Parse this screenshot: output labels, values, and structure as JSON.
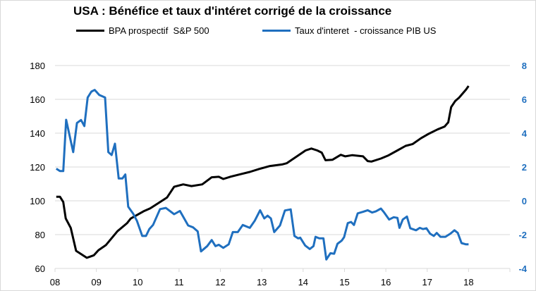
{
  "chart_data": {
    "type": "line",
    "title": "USA : Bénéfice et taux d'intéret corrigé de la croissance",
    "xlim": [
      2008,
      2019
    ],
    "x_tick_labels": [
      "08",
      "09",
      "10",
      "11",
      "12",
      "13",
      "14",
      "15",
      "16",
      "17",
      "18"
    ],
    "x_tick_values": [
      2008,
      2009,
      2010,
      2011,
      2012,
      2013,
      2014,
      2015,
      2016,
      2017,
      2018
    ],
    "y_left": {
      "lim": [
        60,
        180
      ],
      "ticks": [
        60,
        80,
        100,
        120,
        140,
        160,
        180
      ]
    },
    "y_right": {
      "lim": [
        -4,
        8
      ],
      "ticks": [
        -4,
        -2,
        0,
        2,
        4,
        6,
        8
      ],
      "color": "#1f6fbf"
    },
    "grid": "horizontal",
    "legend": "top",
    "series": [
      {
        "name": "BPA prospectif  S&P 500",
        "axis": "left",
        "color": "#000000",
        "points": [
          [
            2008.03,
            102.4
          ],
          [
            2008.12,
            102.4
          ],
          [
            2008.2,
            99.3
          ],
          [
            2008.26,
            89.6
          ],
          [
            2008.38,
            84
          ],
          [
            2008.51,
            70.4
          ],
          [
            2008.77,
            66.3
          ],
          [
            2008.94,
            67.8
          ],
          [
            2009.05,
            70.8
          ],
          [
            2009.23,
            73.8
          ],
          [
            2009.51,
            82
          ],
          [
            2009.74,
            86.7
          ],
          [
            2009.83,
            89.5
          ],
          [
            2010.14,
            93.8
          ],
          [
            2010.3,
            95.5
          ],
          [
            2010.54,
            99.3
          ],
          [
            2010.71,
            102
          ],
          [
            2010.88,
            108.3
          ],
          [
            2011.1,
            109.7
          ],
          [
            2011.3,
            108.7
          ],
          [
            2011.56,
            109.7
          ],
          [
            2011.79,
            113.9
          ],
          [
            2011.96,
            114.2
          ],
          [
            2012.07,
            112.9
          ],
          [
            2012.25,
            114.3
          ],
          [
            2012.48,
            115.7
          ],
          [
            2012.71,
            117.1
          ],
          [
            2012.93,
            118.8
          ],
          [
            2013.2,
            120.6
          ],
          [
            2013.49,
            121.5
          ],
          [
            2013.6,
            122.2
          ],
          [
            2013.89,
            127
          ],
          [
            2014.06,
            129.8
          ],
          [
            2014.2,
            130.9
          ],
          [
            2014.34,
            129.8
          ],
          [
            2014.45,
            128.5
          ],
          [
            2014.54,
            124
          ],
          [
            2014.71,
            124.3
          ],
          [
            2014.91,
            127.2
          ],
          [
            2015.02,
            126.3
          ],
          [
            2015.19,
            127
          ],
          [
            2015.45,
            126.3
          ],
          [
            2015.56,
            123.5
          ],
          [
            2015.65,
            123.2
          ],
          [
            2015.88,
            125
          ],
          [
            2016.05,
            126.7
          ],
          [
            2016.28,
            129.8
          ],
          [
            2016.48,
            132.5
          ],
          [
            2016.65,
            133.6
          ],
          [
            2016.85,
            137
          ],
          [
            2017.02,
            139.4
          ],
          [
            2017.25,
            142.2
          ],
          [
            2017.42,
            143.9
          ],
          [
            2017.51,
            146.4
          ],
          [
            2017.58,
            155.4
          ],
          [
            2017.68,
            159.1
          ],
          [
            2017.77,
            161
          ],
          [
            2017.94,
            165.8
          ],
          [
            2018.0,
            167.9
          ]
        ]
      },
      {
        "name": "Taux d'interet  - croissance PIB US",
        "axis": "right",
        "color": "#1f6fbf",
        "points": [
          [
            2008.03,
            1.9
          ],
          [
            2008.12,
            1.76
          ],
          [
            2008.2,
            1.76
          ],
          [
            2008.27,
            4.79
          ],
          [
            2008.44,
            2.88
          ],
          [
            2008.53,
            4.6
          ],
          [
            2008.63,
            4.78
          ],
          [
            2008.71,
            4.42
          ],
          [
            2008.79,
            6.11
          ],
          [
            2008.88,
            6.46
          ],
          [
            2008.96,
            6.56
          ],
          [
            2009.07,
            6.26
          ],
          [
            2009.21,
            6.11
          ],
          [
            2009.29,
            2.88
          ],
          [
            2009.37,
            2.71
          ],
          [
            2009.45,
            3.38
          ],
          [
            2009.54,
            1.32
          ],
          [
            2009.63,
            1.32
          ],
          [
            2009.7,
            1.56
          ],
          [
            2009.77,
            -0.35
          ],
          [
            2009.89,
            -0.76
          ],
          [
            2009.98,
            -1.18
          ],
          [
            2010.11,
            -2.08
          ],
          [
            2010.2,
            -2.08
          ],
          [
            2010.28,
            -1.67
          ],
          [
            2010.37,
            -1.43
          ],
          [
            2010.54,
            -0.49
          ],
          [
            2010.68,
            -0.42
          ],
          [
            2010.88,
            -0.79
          ],
          [
            2011.02,
            -0.6
          ],
          [
            2011.22,
            -1.46
          ],
          [
            2011.34,
            -1.57
          ],
          [
            2011.45,
            -1.81
          ],
          [
            2011.53,
            -2.99
          ],
          [
            2011.68,
            -2.68
          ],
          [
            2011.79,
            -2.32
          ],
          [
            2011.88,
            -2.68
          ],
          [
            2011.96,
            -2.6
          ],
          [
            2012.07,
            -2.78
          ],
          [
            2012.2,
            -2.57
          ],
          [
            2012.3,
            -1.85
          ],
          [
            2012.42,
            -1.85
          ],
          [
            2012.54,
            -1.43
          ],
          [
            2012.71,
            -1.6
          ],
          [
            2012.83,
            -1.18
          ],
          [
            2012.96,
            -0.56
          ],
          [
            2013.06,
            -1.04
          ],
          [
            2013.14,
            -0.88
          ],
          [
            2013.22,
            -1.04
          ],
          [
            2013.3,
            -1.85
          ],
          [
            2013.44,
            -1.46
          ],
          [
            2013.56,
            -0.57
          ],
          [
            2013.7,
            -0.51
          ],
          [
            2013.79,
            -2.08
          ],
          [
            2013.88,
            -2.22
          ],
          [
            2013.93,
            -2.18
          ],
          [
            2014.05,
            -2.64
          ],
          [
            2014.16,
            -2.85
          ],
          [
            2014.25,
            -2.68
          ],
          [
            2014.3,
            -2.13
          ],
          [
            2014.39,
            -2.22
          ],
          [
            2014.49,
            -2.22
          ],
          [
            2014.56,
            -3.47
          ],
          [
            2014.66,
            -3.1
          ],
          [
            2014.75,
            -3.13
          ],
          [
            2014.83,
            -2.54
          ],
          [
            2014.93,
            -2.36
          ],
          [
            2014.99,
            -2.15
          ],
          [
            2015.08,
            -1.32
          ],
          [
            2015.16,
            -1.25
          ],
          [
            2015.23,
            -1.43
          ],
          [
            2015.32,
            -0.74
          ],
          [
            2015.45,
            -0.65
          ],
          [
            2015.56,
            -0.56
          ],
          [
            2015.67,
            -0.69
          ],
          [
            2015.76,
            -0.62
          ],
          [
            2015.88,
            -0.46
          ],
          [
            2015.96,
            -0.69
          ],
          [
            2016.08,
            -1.11
          ],
          [
            2016.19,
            -0.97
          ],
          [
            2016.28,
            -1.01
          ],
          [
            2016.33,
            -1.6
          ],
          [
            2016.41,
            -1.11
          ],
          [
            2016.51,
            -0.93
          ],
          [
            2016.59,
            -1.62
          ],
          [
            2016.73,
            -1.74
          ],
          [
            2016.82,
            -1.6
          ],
          [
            2016.9,
            -1.67
          ],
          [
            2016.98,
            -1.62
          ],
          [
            2017.07,
            -1.94
          ],
          [
            2017.16,
            -2.08
          ],
          [
            2017.23,
            -1.9
          ],
          [
            2017.32,
            -2.13
          ],
          [
            2017.44,
            -2.13
          ],
          [
            2017.56,
            -1.94
          ],
          [
            2017.66,
            -1.74
          ],
          [
            2017.74,
            -1.9
          ],
          [
            2017.83,
            -2.5
          ],
          [
            2017.93,
            -2.57
          ],
          [
            2018.0,
            -2.57
          ]
        ]
      }
    ]
  }
}
